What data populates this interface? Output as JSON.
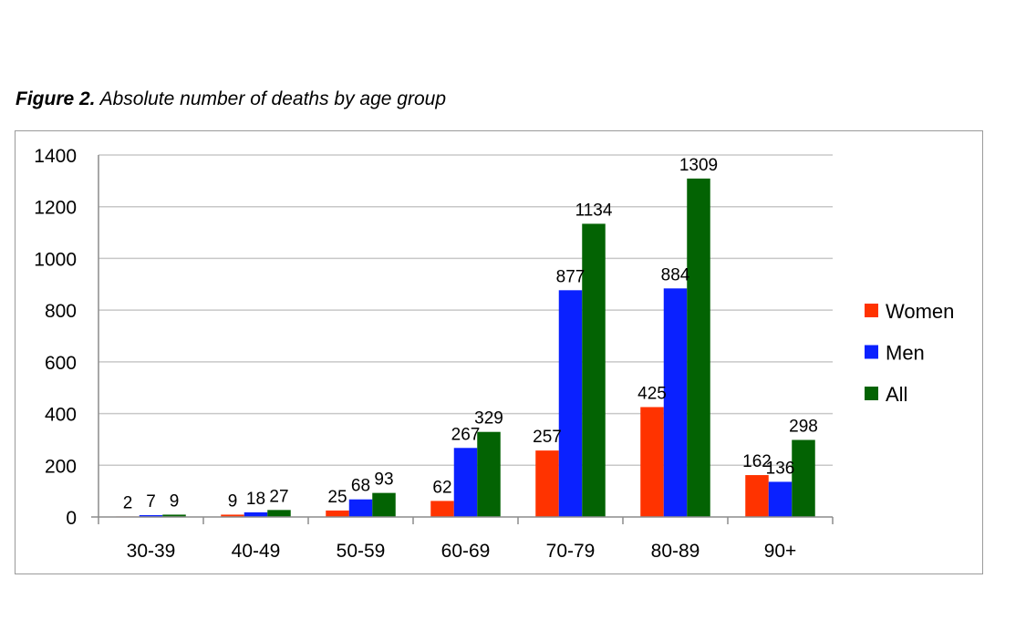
{
  "caption": {
    "label": "Figure 2.",
    "text": "Absolute number of deaths by age group"
  },
  "colors": {
    "women": "#ff3300",
    "men": "#0a21ff",
    "all": "#036303",
    "grid": "#c8c8c8",
    "axis": "#8c8c8c",
    "frame": "#9a9a9a"
  },
  "chart_data": {
    "type": "bar",
    "title": "",
    "xlabel": "",
    "ylabel": "",
    "ylim": [
      0,
      1400
    ],
    "yticks": [
      0,
      200,
      400,
      600,
      800,
      1000,
      1200,
      1400
    ],
    "grid": true,
    "legend_position": "right",
    "categories": [
      "30-39",
      "40-49",
      "50-59",
      "60-69",
      "70-79",
      "80-89",
      "90+"
    ],
    "series": [
      {
        "name": "Women",
        "color": "#ff3300",
        "values": [
          2,
          9,
          25,
          62,
          257,
          425,
          162
        ]
      },
      {
        "name": "Men",
        "color": "#0a21ff",
        "values": [
          7,
          18,
          68,
          267,
          877,
          884,
          136
        ]
      },
      {
        "name": "All",
        "color": "#036303",
        "values": [
          9,
          27,
          93,
          329,
          1134,
          1309,
          298
        ]
      }
    ]
  }
}
